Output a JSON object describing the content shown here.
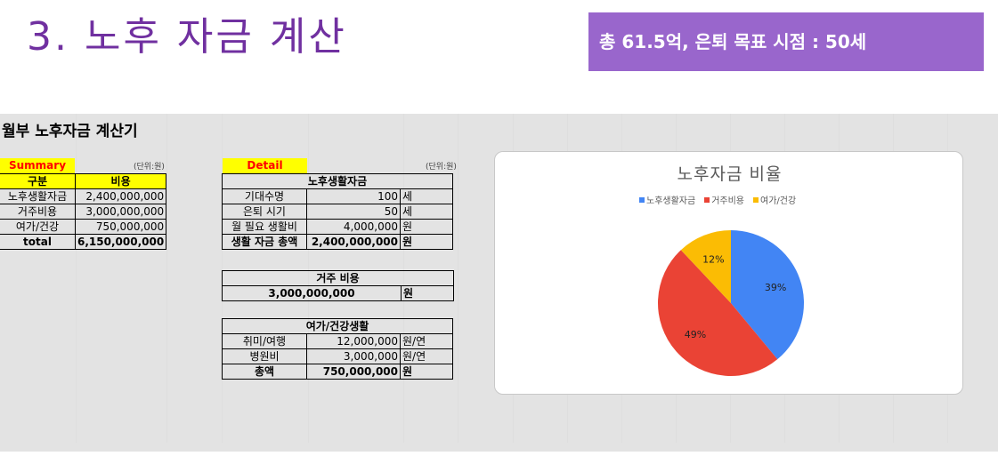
{
  "slide": {
    "title": "3. 노후 자금 계산",
    "banner": "총 61.5억, 은퇴 목표 시점 : 50세"
  },
  "sheet_title": "월부 노후자금 계산기",
  "summary": {
    "label": "Summary",
    "unit": "(단위:원)",
    "headers": [
      "구분",
      "비용"
    ],
    "rows": [
      {
        "name": "노후생활자금",
        "value": "2,400,000,000"
      },
      {
        "name": "거주비용",
        "value": "3,000,000,000"
      },
      {
        "name": "여가/건강",
        "value": "750,000,000"
      },
      {
        "name": "total",
        "value": "6,150,000,000"
      }
    ]
  },
  "detail": {
    "label": "Detail",
    "unit": "(단위:원)",
    "living": {
      "header": "노후생활자금",
      "rows": [
        {
          "name": "기대수명",
          "value": "100",
          "unit": "세"
        },
        {
          "name": "은퇴 시기",
          "value": "50",
          "unit": "세"
        },
        {
          "name": "월 필요 생활비",
          "value": "4,000,000",
          "unit": "원"
        },
        {
          "name": "생활 자금 총액",
          "value": "2,400,000,000",
          "unit": "원"
        }
      ]
    },
    "housing": {
      "header": "거주 비용",
      "value": "3,000,000,000",
      "unit": "원"
    },
    "leisure": {
      "header": "여가/건강생활",
      "rows": [
        {
          "name": "취미/여행",
          "value": "12,000,000",
          "unit": "원/연"
        },
        {
          "name": "병원비",
          "value": "3,000,000",
          "unit": "원/연"
        },
        {
          "name": "총액",
          "value": "750,000,000",
          "unit": "원"
        }
      ]
    }
  },
  "chart_data": {
    "type": "pie",
    "title": "노후자금 비율",
    "categories": [
      "노후생활자금",
      "거주비용",
      "여가/건강"
    ],
    "values": [
      39,
      49,
      12
    ],
    "labels": [
      "39%",
      "49%",
      "12%"
    ],
    "colors": [
      "#4285f4",
      "#ea4335",
      "#fbbc04"
    ],
    "legend": "top"
  }
}
